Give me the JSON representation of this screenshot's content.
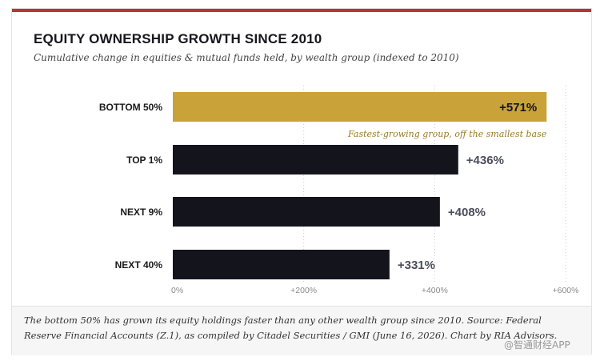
{
  "header": {
    "title": "EQUITY OWNERSHIP GROWTH SINCE 2010",
    "subtitle": "Cumulative change in equities & mutual funds held, by wealth group (indexed to 2010)"
  },
  "colors": {
    "accent_bar": "#c9a33a",
    "bar": "#14151c",
    "top_rule": "#b2382d",
    "annotation": "#9a7b28",
    "value_label": "#4a4d5c"
  },
  "chart_data": {
    "type": "bar",
    "orientation": "horizontal",
    "categories": [
      "BOTTOM 50%",
      "TOP 1%",
      "NEXT 9%",
      "NEXT 40%"
    ],
    "values": [
      571,
      436,
      408,
      331
    ],
    "value_labels": [
      "+571%",
      "+436%",
      "+408%",
      "+331%"
    ],
    "xlim": [
      0,
      600
    ],
    "xticks": [
      0,
      200,
      400,
      600
    ],
    "xtick_labels": [
      "0%",
      "+200%",
      "+400%",
      "+600%"
    ],
    "grid": "vertical dotted",
    "highlight_index": 0,
    "annotation": "Fastest-growing group, off the smallest base"
  },
  "footer": {
    "note": "The bottom 50% has grown its equity holdings faster than any other wealth group since 2010. Source: Federal Reserve Financial Accounts (Z.1), as compiled by Citadel Securities / GMI (June 16, 2026). Chart by RIA Advisors."
  },
  "watermark": "@智通财经APP"
}
